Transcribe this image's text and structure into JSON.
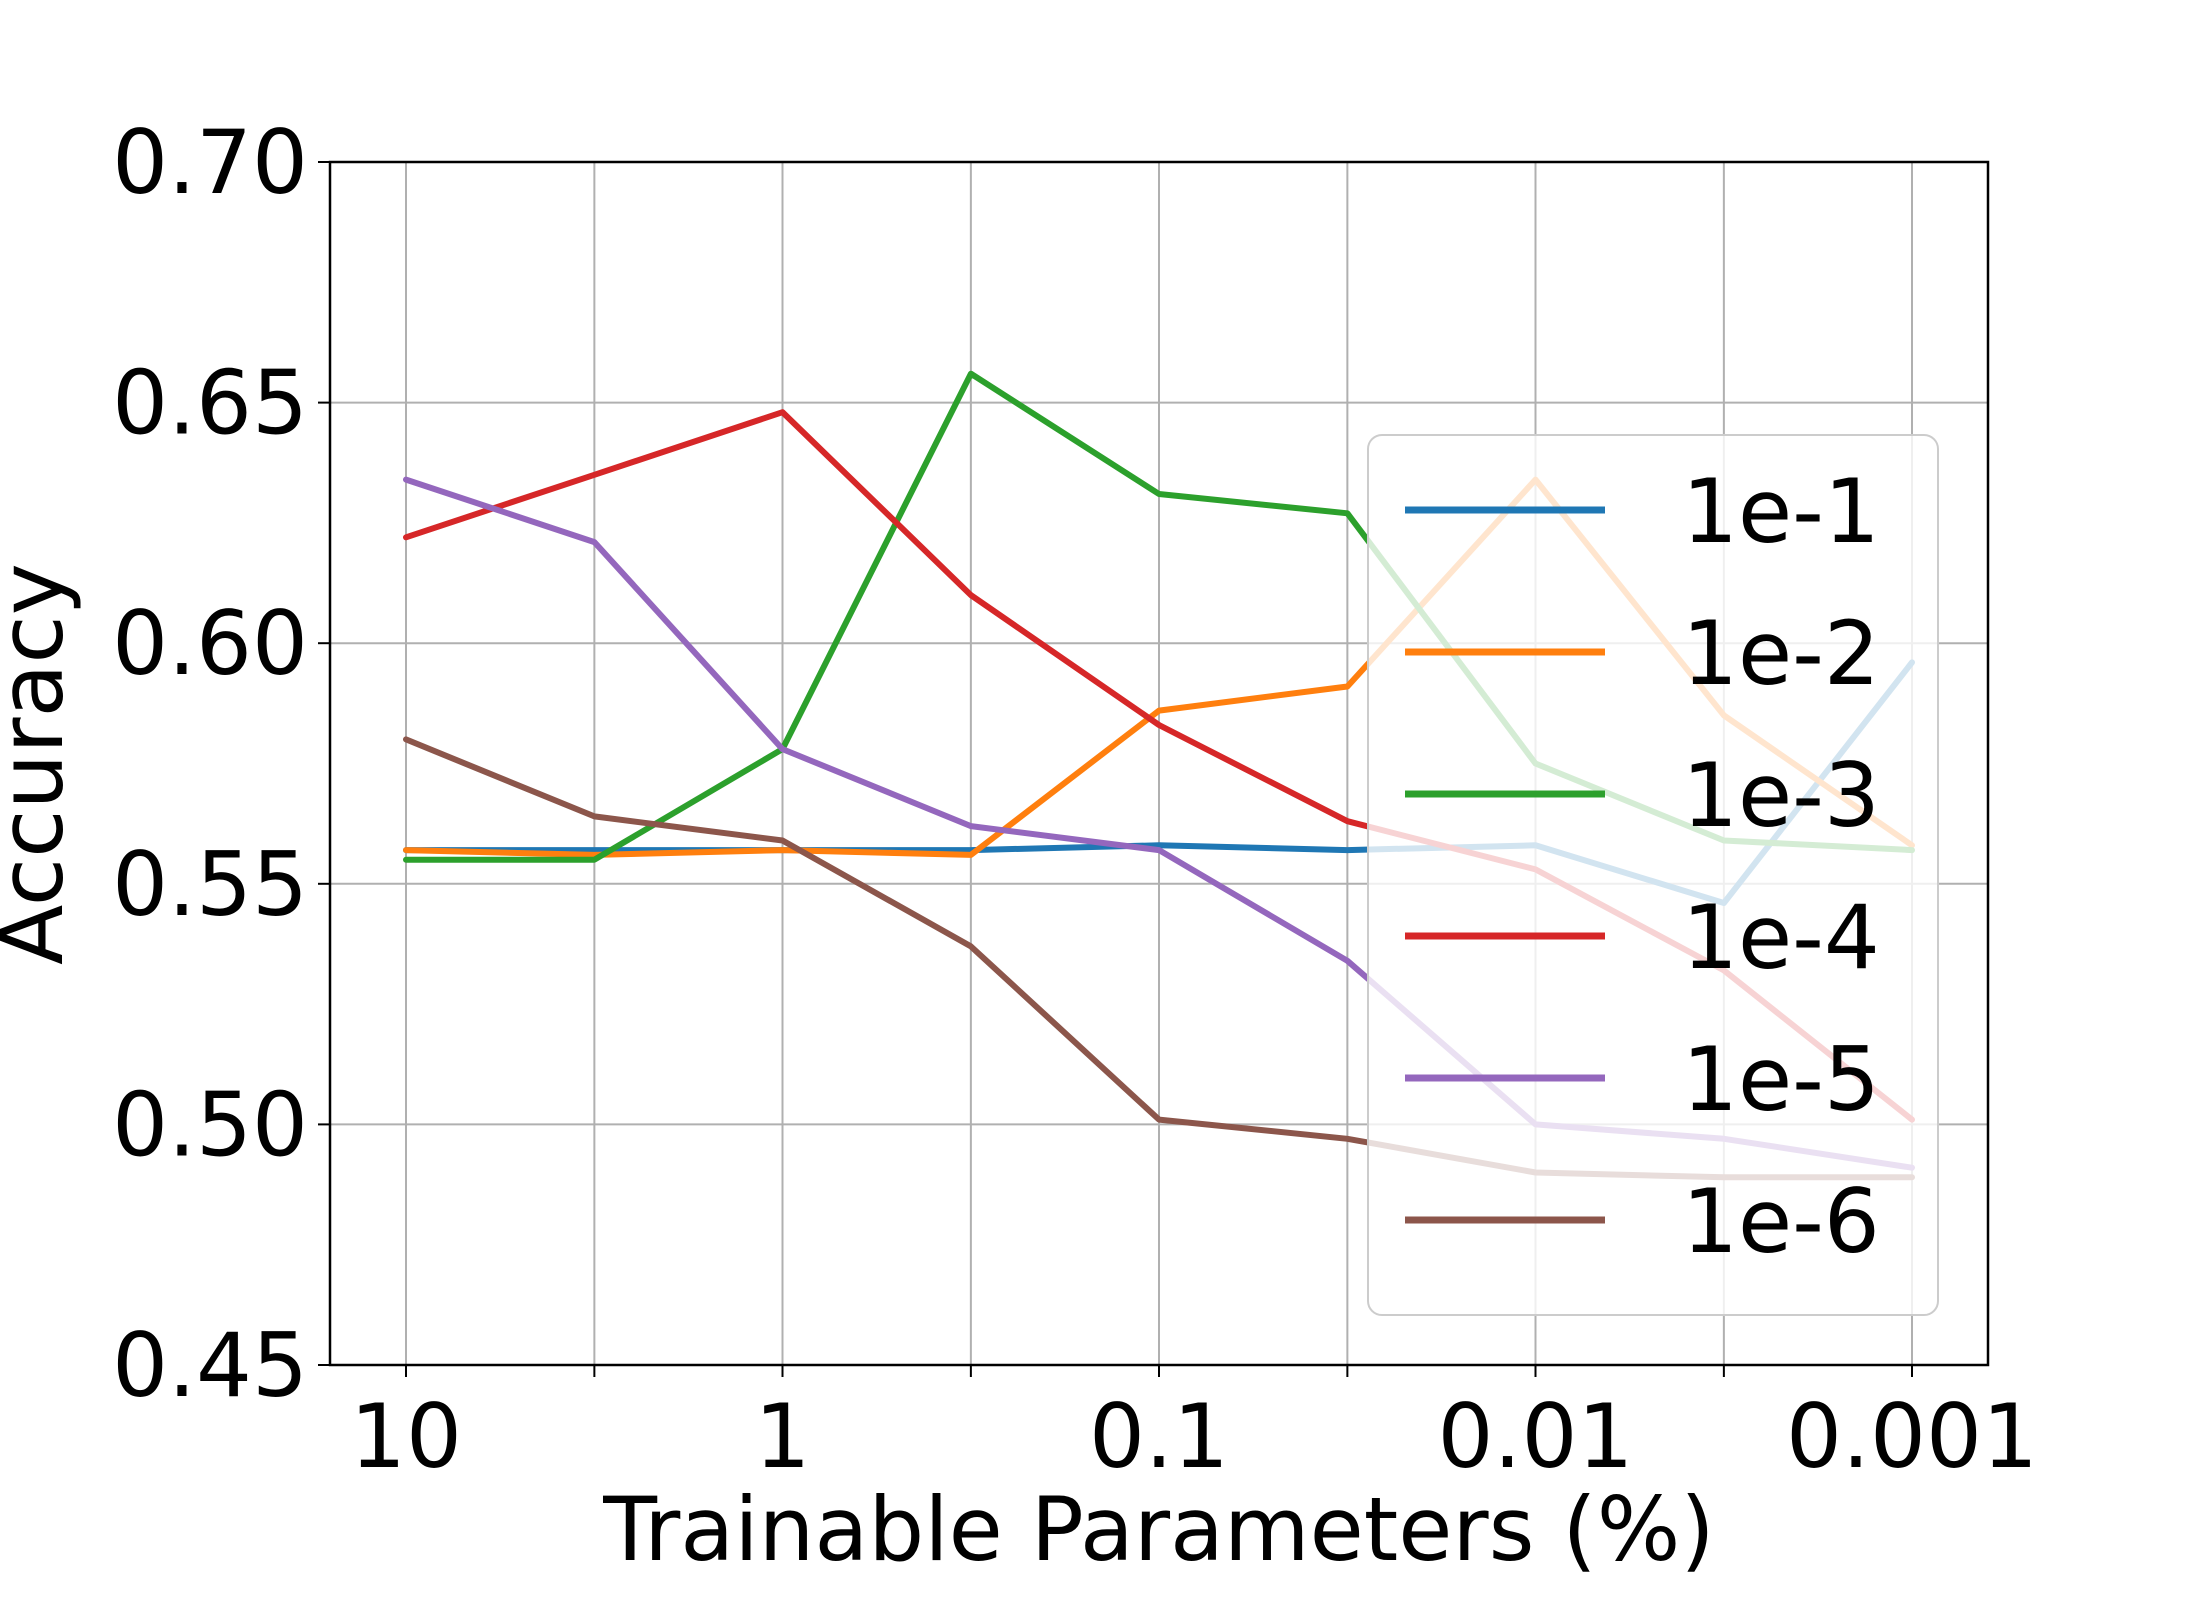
{
  "chart_data": {
    "type": "line",
    "title": "",
    "xlabel": "Trainable Parameters (%)",
    "ylabel": "Accuracy",
    "x": [
      10,
      3.16,
      1,
      0.316,
      0.1,
      0.0316,
      0.01,
      0.00316,
      0.001
    ],
    "x_scale": "log",
    "x_reversed": true,
    "x_ticks": [
      {
        "label": "10",
        "value": 10
      },
      {
        "label": "",
        "value": 3.16
      },
      {
        "label": "1",
        "value": 1
      },
      {
        "label": "",
        "value": 0.316
      },
      {
        "label": "0.1",
        "value": 0.1
      },
      {
        "label": "",
        "value": 0.0316
      },
      {
        "label": "0.01",
        "value": 0.01
      },
      {
        "label": "",
        "value": 0.00316
      },
      {
        "label": "0.001",
        "value": 0.001
      }
    ],
    "ylim": [
      0.45,
      0.7
    ],
    "y_ticks": [
      {
        "label": "0.45",
        "value": 0.45
      },
      {
        "label": "0.50",
        "value": 0.5
      },
      {
        "label": "0.55",
        "value": 0.55
      },
      {
        "label": "0.60",
        "value": 0.6
      },
      {
        "label": "0.65",
        "value": 0.65
      },
      {
        "label": "0.70",
        "value": 0.7
      }
    ],
    "grid": true,
    "legend_position": "center-right",
    "series": [
      {
        "name": "1e-1",
        "color": "#1f77b4",
        "values": [
          0.557,
          0.557,
          0.557,
          0.557,
          0.558,
          0.557,
          0.558,
          0.546,
          0.596
        ]
      },
      {
        "name": "1e-2",
        "color": "#ff7f0e",
        "values": [
          0.557,
          0.556,
          0.557,
          0.556,
          0.586,
          0.591,
          0.634,
          0.585,
          0.558
        ]
      },
      {
        "name": "1e-3",
        "color": "#2ca02c",
        "values": [
          0.555,
          0.555,
          0.578,
          0.656,
          0.631,
          0.627,
          0.575,
          0.559,
          0.557
        ]
      },
      {
        "name": "1e-4",
        "color": "#d62728",
        "values": [
          0.622,
          0.635,
          0.648,
          0.61,
          0.583,
          0.563,
          0.553,
          0.532,
          0.501
        ]
      },
      {
        "name": "1e-5",
        "color": "#9467bd",
        "values": [
          0.634,
          0.621,
          0.578,
          0.562,
          0.557,
          0.534,
          0.5,
          0.497,
          0.491
        ]
      },
      {
        "name": "1e-6",
        "color": "#8c564b",
        "values": [
          0.58,
          0.564,
          0.559,
          0.537,
          0.501,
          0.497,
          0.49,
          0.489,
          0.489
        ]
      }
    ]
  }
}
